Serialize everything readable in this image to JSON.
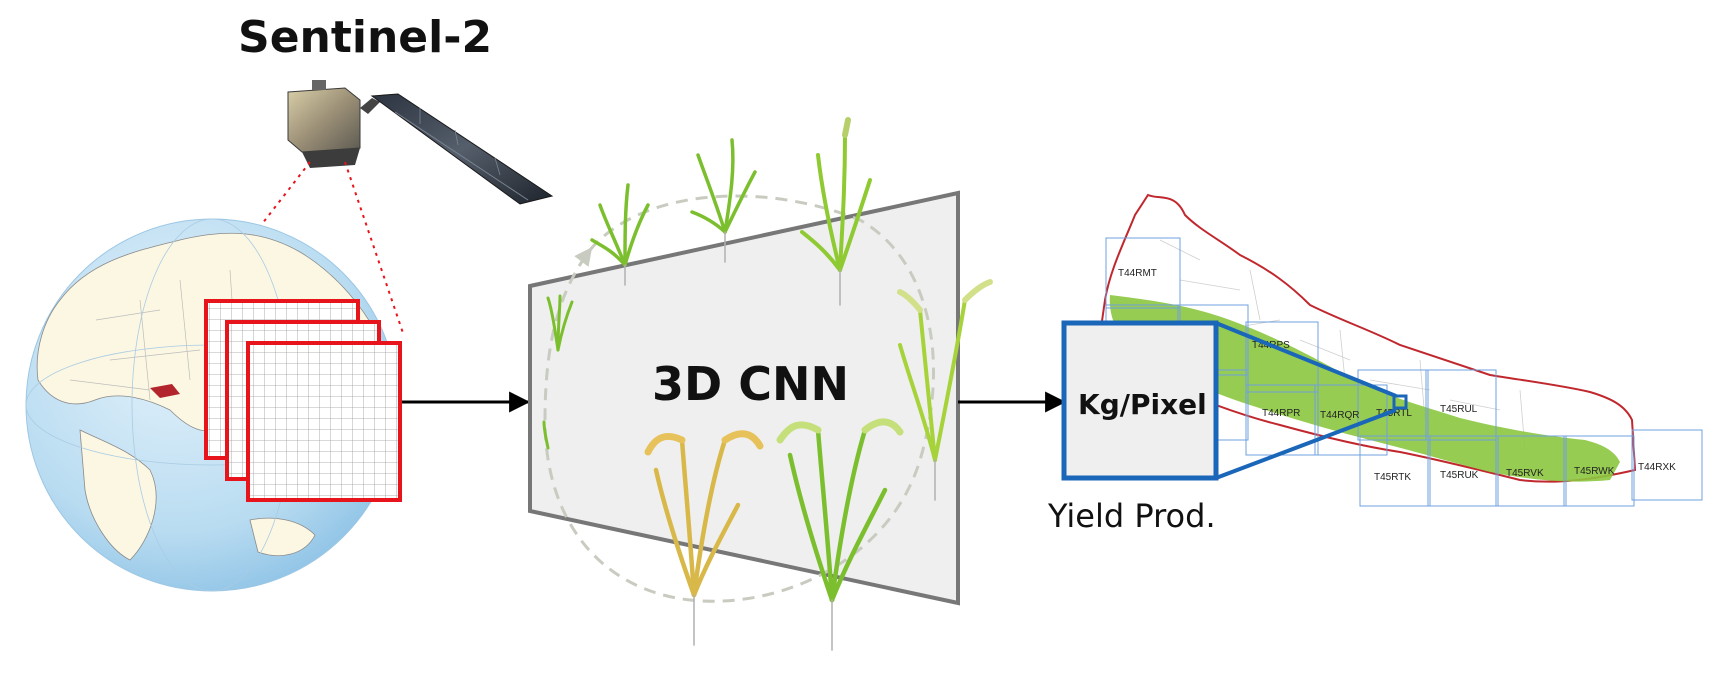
{
  "diagram": {
    "satellite_label": "Sentinel-2",
    "model_label": "3D CNN",
    "output_label": "Kg/Pixel",
    "output_caption": "Yield Prod.",
    "tiles": [
      "T44RMT",
      "T44RPS",
      "T44RPR",
      "T44RQR",
      "T45RTL",
      "T45RUL",
      "T45RTK",
      "T45RUK",
      "T45RVK",
      "T45RWK",
      "T44RXK"
    ],
    "colors": {
      "image_stack_border": "#e8141c",
      "output_box_border": "#1a66b8",
      "tile_grid": "#6fa0e0",
      "country_border": "#c0282e",
      "rice_region": "#8cc63f",
      "cnn_block_fill": "#efefef",
      "cnn_block_stroke": "#777777",
      "arrow": "#000000"
    },
    "icons": [
      "satellite-icon",
      "globe-icon",
      "image-stack-icon",
      "rice-growth-cycle-icon",
      "nepal-map-icon"
    ]
  }
}
